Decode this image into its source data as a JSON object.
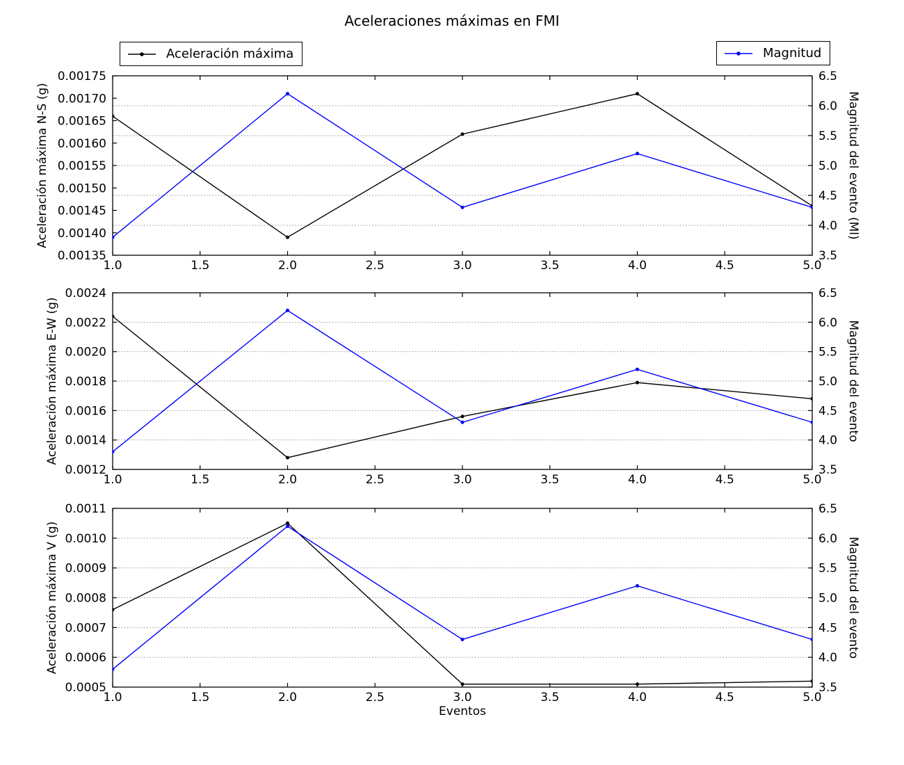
{
  "figure": {
    "title": "Aceleraciones máximas en FMI",
    "background": "#ffffff"
  },
  "legends": [
    {
      "label": "Aceleración máxima",
      "color": "#000000"
    },
    {
      "label": "Magnitud",
      "color": "#0000ff"
    }
  ],
  "chart_data": {
    "type": "line",
    "title": "Aceleraciones máximas en FMI",
    "xlabel": "Eventos",
    "x": [
      1.0,
      2.0,
      3.0,
      4.0,
      5.0
    ],
    "xlim": [
      1.0,
      5.0
    ],
    "xtick_labels": [
      "1.0",
      "1.5",
      "2.0",
      "2.5",
      "3.0",
      "3.5",
      "4.0",
      "4.5",
      "5.0"
    ],
    "grid": "horizontal dotted lines at right-axis ticks",
    "legend_position": "two boxes above top subplot",
    "marker": "filled circle",
    "subplots": [
      {
        "ylabel": "Aceleración máxima N-S (g)",
        "ylim": [
          0.00135,
          0.00175
        ],
        "ytick_labels": [
          "0.00135",
          "0.00140",
          "0.00145",
          "0.00150",
          "0.00155",
          "0.00160",
          "0.00165",
          "0.00170",
          "0.00175"
        ],
        "right_ylabel": "Magnitud del evento (Ml)",
        "right_ylim": [
          3.5,
          6.5
        ],
        "right_ytick_labels": [
          "3.5",
          "4.0",
          "4.5",
          "5.0",
          "5.5",
          "6.0",
          "6.5"
        ],
        "series": [
          {
            "name": "Aceleración máxima",
            "axis": "left",
            "color": "#000000",
            "values": [
              0.00166,
              0.00139,
              0.00162,
              0.00171,
              0.00146
            ]
          },
          {
            "name": "Magnitud",
            "axis": "right",
            "color": "#0000ff",
            "values": [
              3.8,
              6.2,
              4.3,
              5.2,
              4.3
            ]
          }
        ]
      },
      {
        "ylabel": "Aceleración máxima E-W (g)",
        "ylim": [
          0.0012,
          0.0024
        ],
        "ytick_labels": [
          "0.0012",
          "0.0014",
          "0.0016",
          "0.0018",
          "0.0020",
          "0.0022",
          "0.0024"
        ],
        "right_ylabel": "Magnitud del evento",
        "right_ylim": [
          3.5,
          6.5
        ],
        "right_ytick_labels": [
          "3.5",
          "4.0",
          "4.5",
          "5.0",
          "5.5",
          "6.0",
          "6.5"
        ],
        "series": [
          {
            "name": "Aceleración máxima",
            "axis": "left",
            "color": "#000000",
            "values": [
              0.00224,
              0.00128,
              0.00156,
              0.00179,
              0.00168
            ]
          },
          {
            "name": "Magnitud",
            "axis": "right",
            "color": "#0000ff",
            "values": [
              3.8,
              6.2,
              4.3,
              5.2,
              4.3
            ]
          }
        ]
      },
      {
        "ylabel": "Aceleración máxima V (g)",
        "ylim": [
          0.0005,
          0.0011
        ],
        "ytick_labels": [
          "0.0005",
          "0.0006",
          "0.0007",
          "0.0008",
          "0.0009",
          "0.0010",
          "0.0011"
        ],
        "right_ylabel": "Magnitud del evento",
        "right_ylim": [
          3.5,
          6.5
        ],
        "right_ytick_labels": [
          "3.5",
          "4.0",
          "4.5",
          "5.0",
          "5.5",
          "6.0",
          "6.5"
        ],
        "xlabel": "Eventos",
        "series": [
          {
            "name": "Aceleración máxima",
            "axis": "left",
            "color": "#000000",
            "values": [
              0.00076,
              0.00105,
              0.00051,
              0.00051,
              0.00052
            ]
          },
          {
            "name": "Magnitud",
            "axis": "right",
            "color": "#0000ff",
            "values": [
              3.8,
              6.2,
              4.3,
              5.2,
              4.3
            ]
          }
        ]
      }
    ]
  }
}
